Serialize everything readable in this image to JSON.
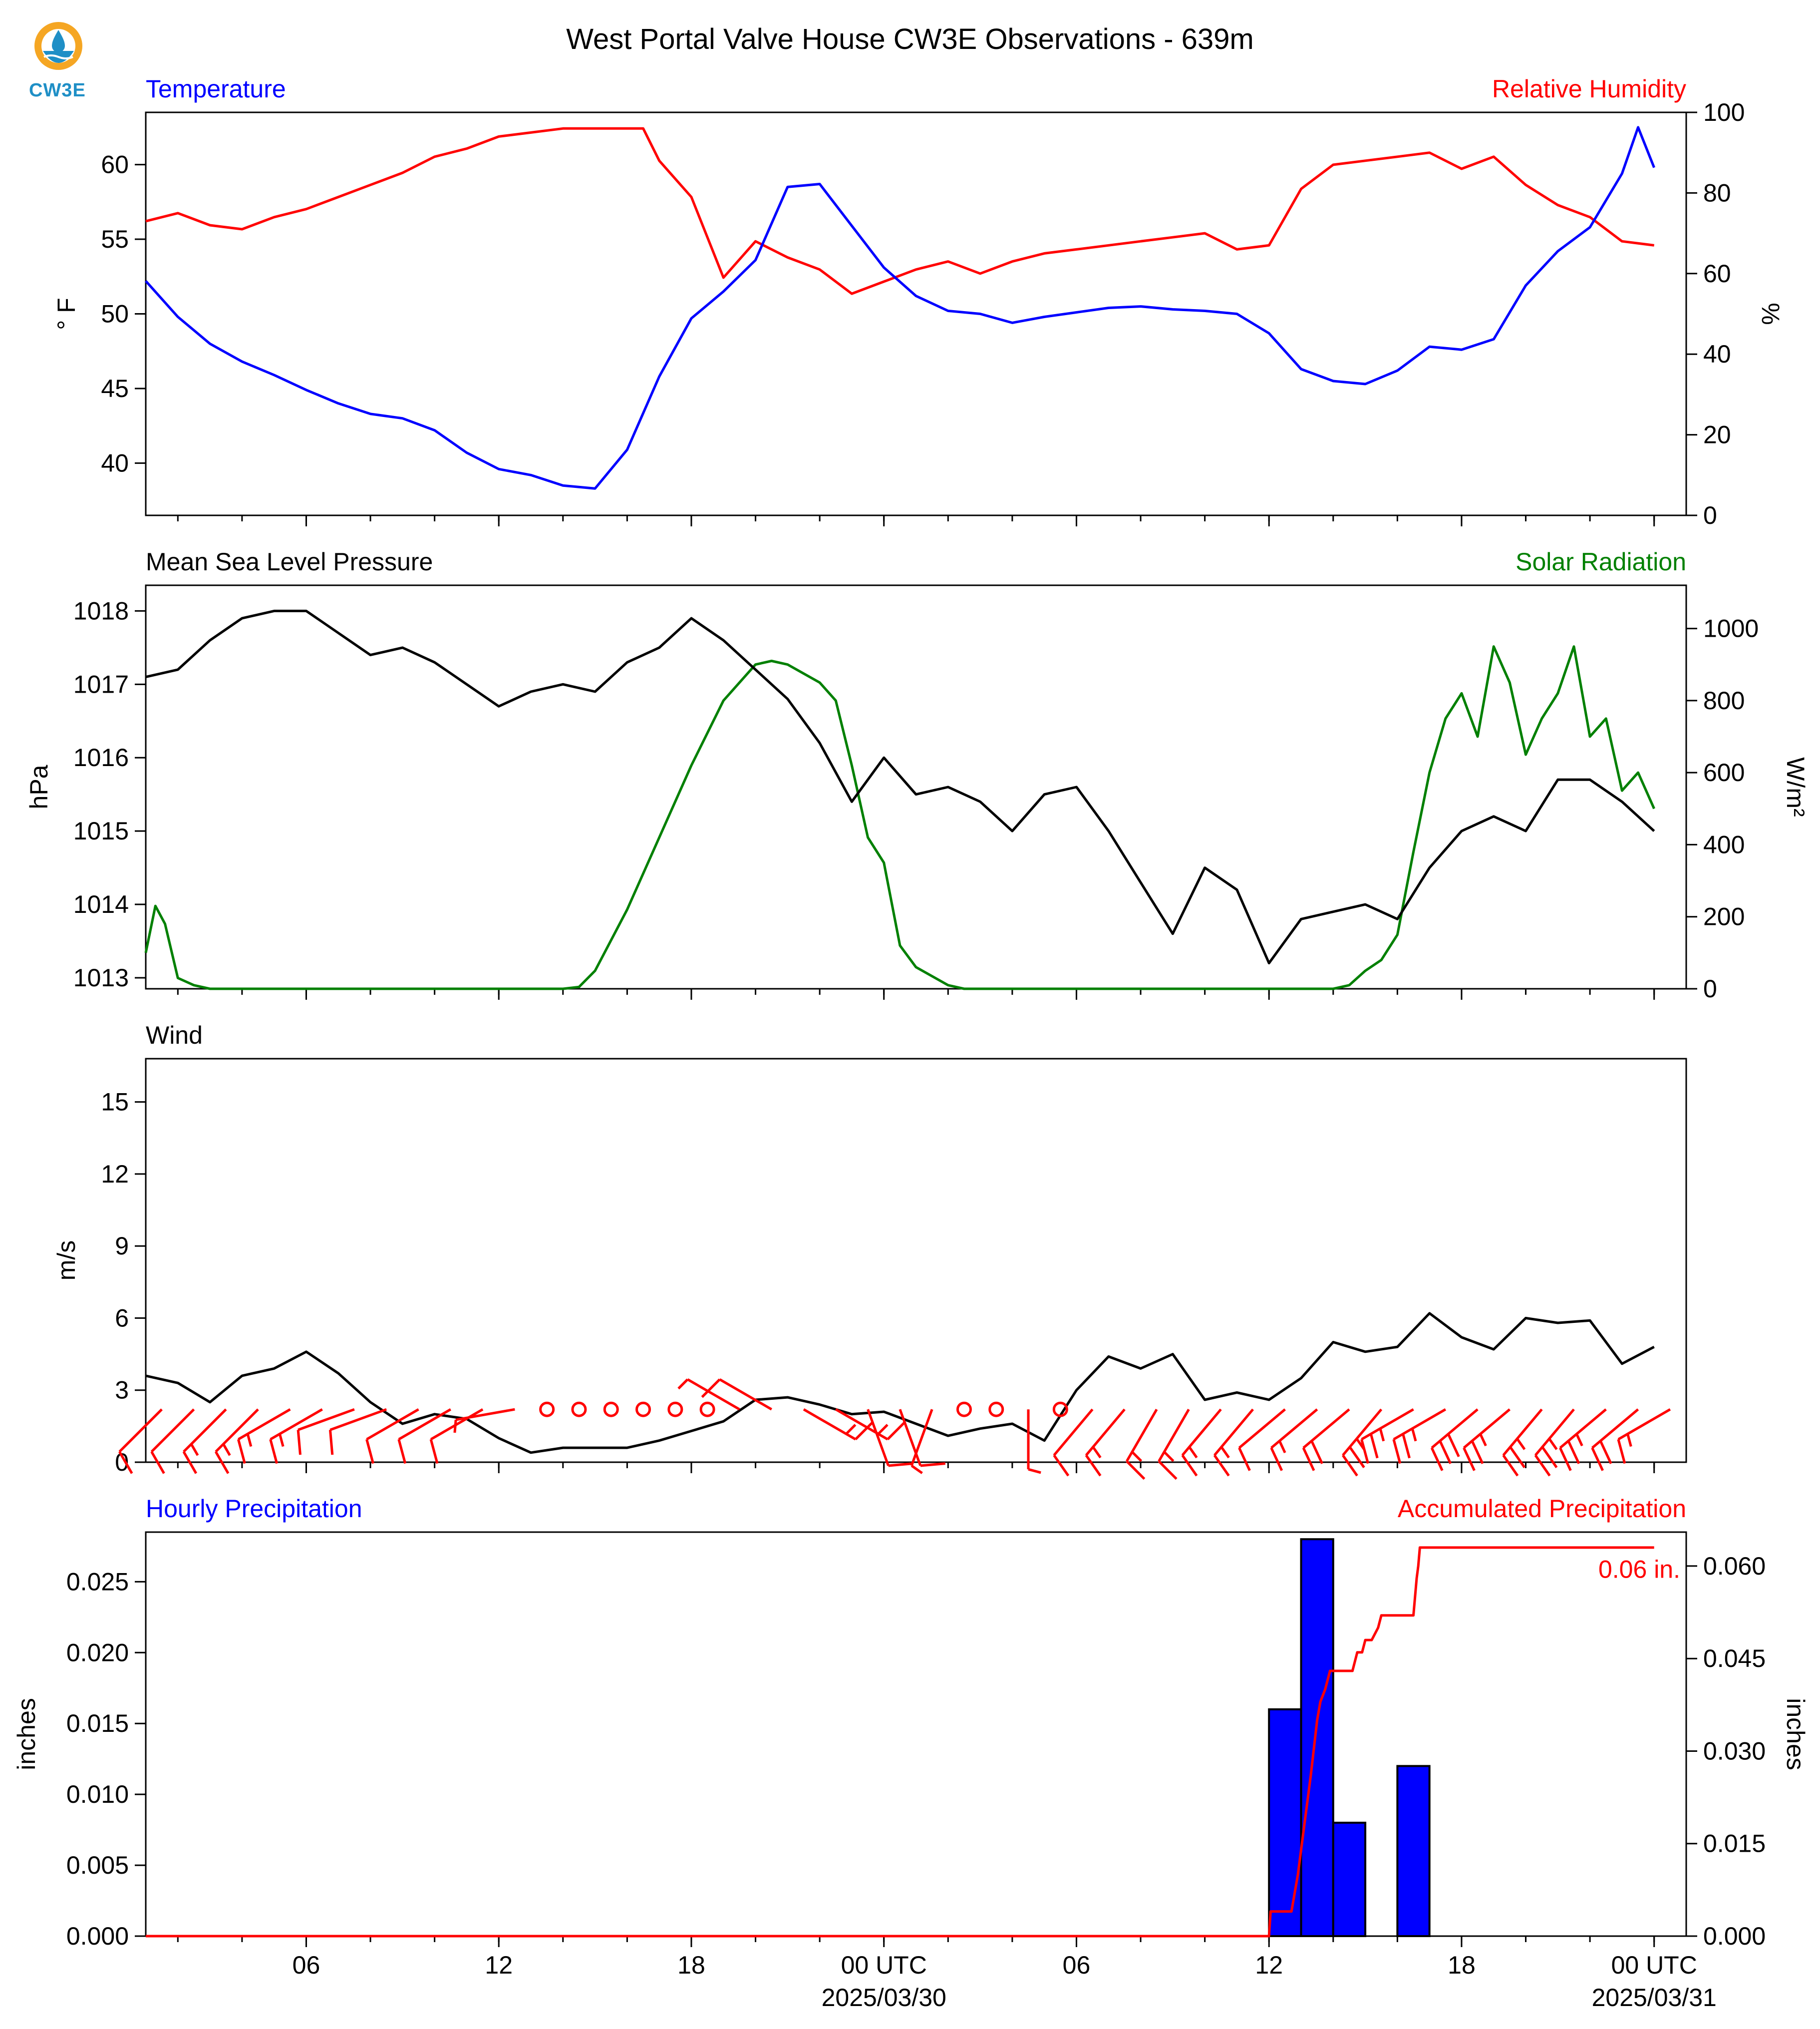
{
  "header": {
    "title": "West Portal Valve House CW3E Observations - 639m",
    "logo_text": "CW3E"
  },
  "colors": {
    "temperature": "#0000ff",
    "humidity": "#ff0000",
    "pressure": "#000000",
    "solar": "#008000",
    "wind_speed": "#000000",
    "wind_barb": "#ff0000",
    "hourly_precip": "#0000ff",
    "accum_precip": "#ff0000"
  },
  "time_axis": {
    "unit": "hours since 2025/03/29 01 UTC",
    "tick_labels": [
      "06",
      "12",
      "18",
      "00 UTC",
      "06",
      "12",
      "18",
      "00 UTC"
    ],
    "tick_hours": [
      5,
      11,
      17,
      23,
      29,
      35,
      41,
      47
    ],
    "date_labels": [
      "2025/03/30",
      "2025/03/31"
    ],
    "range": [
      0,
      48
    ]
  },
  "chart_data": [
    {
      "type": "line",
      "panel": "temperature-humidity",
      "left_title": "Temperature",
      "right_title": "Relative Humidity",
      "ylabel": "° F",
      "ylabel_right": "%",
      "ylim": [
        36.5,
        63.5
      ],
      "ylim_right": [
        0,
        100
      ],
      "yticks": [
        "40",
        "45",
        "50",
        "55",
        "60"
      ],
      "yticks_right": [
        "0",
        "20",
        "40",
        "60",
        "80",
        "100"
      ],
      "series": [
        {
          "axis": "left",
          "x": [
            0,
            1,
            2,
            3,
            4,
            5,
            6,
            7,
            8,
            9,
            10,
            11,
            12,
            13,
            14,
            15,
            16,
            17,
            18,
            19,
            20,
            21,
            22,
            23,
            24,
            25,
            26,
            27,
            28,
            29,
            30,
            31,
            32,
            33,
            34,
            35,
            36,
            37,
            38,
            39,
            40,
            41,
            42,
            43,
            44,
            45,
            46,
            46.5,
            47
          ],
          "values": [
            52.2,
            49.8,
            48.0,
            46.8,
            45.9,
            44.9,
            44.0,
            43.3,
            43.0,
            42.2,
            40.7,
            39.6,
            39.2,
            38.5,
            38.3,
            40.9,
            45.8,
            49.7,
            51.5,
            53.6,
            58.5,
            58.7,
            55.9,
            53.1,
            51.2,
            50.2,
            50.0,
            49.4,
            49.8,
            50.1,
            50.4,
            50.5,
            50.3,
            50.2,
            50.0,
            48.7,
            46.3,
            45.5,
            45.3,
            46.2,
            47.8,
            47.6,
            48.3,
            51.9,
            54.2,
            55.8,
            59.4,
            62.5,
            59.8
          ]
        },
        {
          "axis": "right",
          "x": [
            0,
            1,
            2,
            3,
            4,
            5,
            6,
            7,
            8,
            9,
            10,
            11,
            12,
            13,
            14,
            15,
            15.5,
            16,
            17,
            18,
            19,
            20,
            21,
            22,
            23,
            24,
            25,
            26,
            27,
            28,
            29,
            30,
            31,
            32,
            33,
            34,
            35,
            36,
            37,
            38,
            39,
            40,
            41,
            42,
            43,
            44,
            45,
            46,
            47
          ],
          "values": [
            73,
            75,
            72,
            71,
            74,
            76,
            79,
            82,
            85,
            89,
            91,
            94,
            95,
            96,
            96,
            96,
            96,
            88,
            79,
            59,
            68,
            64,
            61,
            55,
            58,
            61,
            63,
            60,
            63,
            65,
            66,
            67,
            68,
            69,
            70,
            66,
            67,
            81,
            87,
            88,
            89,
            90,
            86,
            89,
            82,
            77,
            74,
            68,
            67
          ]
        }
      ]
    },
    {
      "type": "line",
      "panel": "pressure-solar",
      "left_title": "Mean Sea Level Pressure",
      "right_title": "Solar Radiation",
      "ylabel": "hPa",
      "ylabel_right": "W/m²",
      "ylim": [
        1012.85,
        1018.35
      ],
      "ylim_right": [
        0,
        1120
      ],
      "yticks": [
        "1013",
        "1014",
        "1015",
        "1016",
        "1017",
        "1018"
      ],
      "yticks_right": [
        "0",
        "200",
        "400",
        "600",
        "800",
        "1000"
      ],
      "series": [
        {
          "axis": "left",
          "x": [
            0,
            1,
            2,
            3,
            4,
            5,
            6,
            7,
            8,
            9,
            10,
            11,
            12,
            13,
            14,
            15,
            16,
            17,
            18,
            19,
            20,
            21,
            22,
            23,
            24,
            25,
            26,
            27,
            28,
            29,
            30,
            31,
            32,
            33,
            34,
            35,
            36,
            37,
            38,
            39,
            40,
            41,
            42,
            43,
            44,
            45,
            46,
            47
          ],
          "values": [
            1017.1,
            1017.2,
            1017.6,
            1017.9,
            1018.0,
            1018.0,
            1017.7,
            1017.4,
            1017.5,
            1017.3,
            1017.0,
            1016.7,
            1016.9,
            1017.0,
            1016.9,
            1017.3,
            1017.5,
            1017.9,
            1017.6,
            1017.2,
            1016.8,
            1016.2,
            1015.4,
            1016.0,
            1015.5,
            1015.6,
            1015.4,
            1015.0,
            1015.5,
            1015.6,
            1015.0,
            1014.3,
            1013.6,
            1014.5,
            1014.2,
            1013.2,
            1013.8,
            1013.9,
            1014.0,
            1013.8,
            1014.5,
            1015.0,
            1015.2,
            1015.0,
            1015.7,
            1015.7,
            1015.4,
            1015.0
          ]
        },
        {
          "axis": "right",
          "x": [
            0,
            0.3,
            0.6,
            1,
            1.5,
            2,
            13,
            13.5,
            14,
            15,
            16,
            17,
            18,
            19,
            19.5,
            20,
            21,
            21.5,
            22,
            22.5,
            23,
            23.5,
            24,
            25,
            25.5,
            26,
            30,
            36,
            37,
            37.5,
            38,
            38.5,
            39,
            39.5,
            40,
            40.5,
            41,
            41.5,
            42,
            42.5,
            43,
            43.5,
            44,
            44.5,
            45,
            45.5,
            46,
            46.5,
            47
          ],
          "values": [
            100,
            230,
            180,
            30,
            10,
            0,
            0,
            5,
            50,
            220,
            420,
            620,
            800,
            900,
            910,
            900,
            850,
            800,
            620,
            420,
            350,
            120,
            60,
            10,
            0,
            0,
            0,
            0,
            0,
            10,
            50,
            80,
            150,
            380,
            600,
            750,
            820,
            700,
            950,
            850,
            650,
            750,
            820,
            950,
            700,
            750,
            550,
            600,
            500
          ]
        }
      ]
    },
    {
      "type": "line",
      "panel": "wind",
      "left_title": "Wind",
      "ylabel": "m/s",
      "ylim": [
        0,
        16.8
      ],
      "yticks": [
        "0",
        "3",
        "6",
        "9",
        "12",
        "15"
      ],
      "series": [
        {
          "axis": "left",
          "x": [
            0,
            1,
            2,
            3,
            4,
            5,
            6,
            7,
            8,
            9,
            10,
            11,
            12,
            13,
            14,
            15,
            16,
            17,
            18,
            19,
            20,
            21,
            22,
            23,
            24,
            25,
            26,
            27,
            28,
            29,
            30,
            31,
            32,
            33,
            34,
            35,
            36,
            37,
            38,
            39,
            40,
            41,
            42,
            43,
            44,
            45,
            46,
            47
          ],
          "values": [
            3.6,
            3.3,
            2.5,
            3.6,
            3.9,
            4.6,
            3.7,
            2.5,
            1.6,
            2.0,
            1.8,
            1.0,
            0.4,
            0.6,
            0.6,
            0.6,
            0.9,
            1.3,
            1.7,
            2.6,
            2.7,
            2.4,
            2.0,
            2.1,
            1.6,
            1.1,
            1.4,
            1.6,
            0.9,
            3.0,
            4.4,
            3.9,
            4.5,
            2.6,
            2.9,
            2.6,
            3.5,
            5.0,
            4.6,
            4.8,
            6.2,
            5.2,
            4.7,
            6.0,
            5.8,
            5.9,
            4.1,
            4.8
          ]
        }
      ],
      "barbs": {
        "x": [
          0.5,
          1.5,
          2.5,
          3.5,
          4.5,
          5.5,
          6.5,
          7.5,
          8.5,
          9.5,
          10.5,
          11.5,
          12.5,
          13.5,
          14.5,
          15.5,
          16.5,
          17.5,
          18.5,
          19.5,
          20.5,
          21.5,
          22.5,
          23.5,
          24.5,
          25.5,
          26.5,
          27.5,
          28.5,
          29.5,
          30.5,
          31.5,
          32.5,
          33.5,
          34.5,
          35.5,
          36.5,
          37.5,
          38.5,
          39.5,
          40.5,
          41.5,
          42.5,
          43.5,
          44.5,
          45.5,
          46.5,
          47.5
        ],
        "speed": [
          2,
          2,
          3,
          3,
          3,
          3,
          2,
          2,
          2,
          2,
          2,
          1,
          0,
          0,
          0,
          0,
          0,
          0,
          1,
          2,
          3,
          3,
          2,
          2,
          1,
          0,
          0,
          1,
          0,
          2,
          3,
          3,
          3,
          3,
          3,
          2,
          3,
          4,
          5,
          5,
          5,
          6,
          5,
          5,
          5,
          5,
          4,
          3
        ],
        "direction": [
          225,
          225,
          225,
          225,
          240,
          240,
          250,
          250,
          240,
          240,
          240,
          260,
          0,
          0,
          0,
          0,
          0,
          0,
          300,
          300,
          120,
          120,
          160,
          160,
          200,
          0,
          0,
          180,
          0,
          220,
          220,
          210,
          210,
          220,
          220,
          230,
          230,
          230,
          220,
          240,
          240,
          230,
          230,
          220,
          220,
          230,
          230,
          240
        ]
      }
    },
    {
      "type": "bar",
      "panel": "precipitation",
      "left_title": "Hourly Precipitation",
      "right_title": "Accumulated Precipitation",
      "ylabel": "inches",
      "ylabel_right": "inches",
      "ylim": [
        0,
        0.0285
      ],
      "ylim_right": [
        0,
        0.0655
      ],
      "yticks": [
        "0.000",
        "0.005",
        "0.010",
        "0.015",
        "0.020",
        "0.025"
      ],
      "yticks_right": [
        "0.000",
        "0.015",
        "0.030",
        "0.045",
        "0.060"
      ],
      "bars": {
        "x": [
          35,
          36,
          37,
          39
        ],
        "values": [
          0.016,
          0.028,
          0.008,
          0.012
        ]
      },
      "accumulated": {
        "x": [
          0,
          35,
          35.05,
          35.7,
          35.9,
          36.1,
          36.3,
          36.5,
          36.6,
          36.75,
          36.9,
          37.0,
          37.6,
          37.75,
          37.9,
          38.0,
          38.2,
          38.4,
          38.5,
          38.9,
          39.2,
          39.5,
          39.6,
          39.65,
          39.7,
          47
        ],
        "values": [
          0,
          0,
          0.004,
          0.004,
          0.01,
          0.018,
          0.026,
          0.035,
          0.038,
          0.04,
          0.043,
          0.043,
          0.043,
          0.046,
          0.046,
          0.048,
          0.048,
          0.05,
          0.052,
          0.052,
          0.052,
          0.052,
          0.058,
          0.06,
          0.063,
          0.063
        ]
      },
      "annotation": "0.06 in."
    }
  ]
}
